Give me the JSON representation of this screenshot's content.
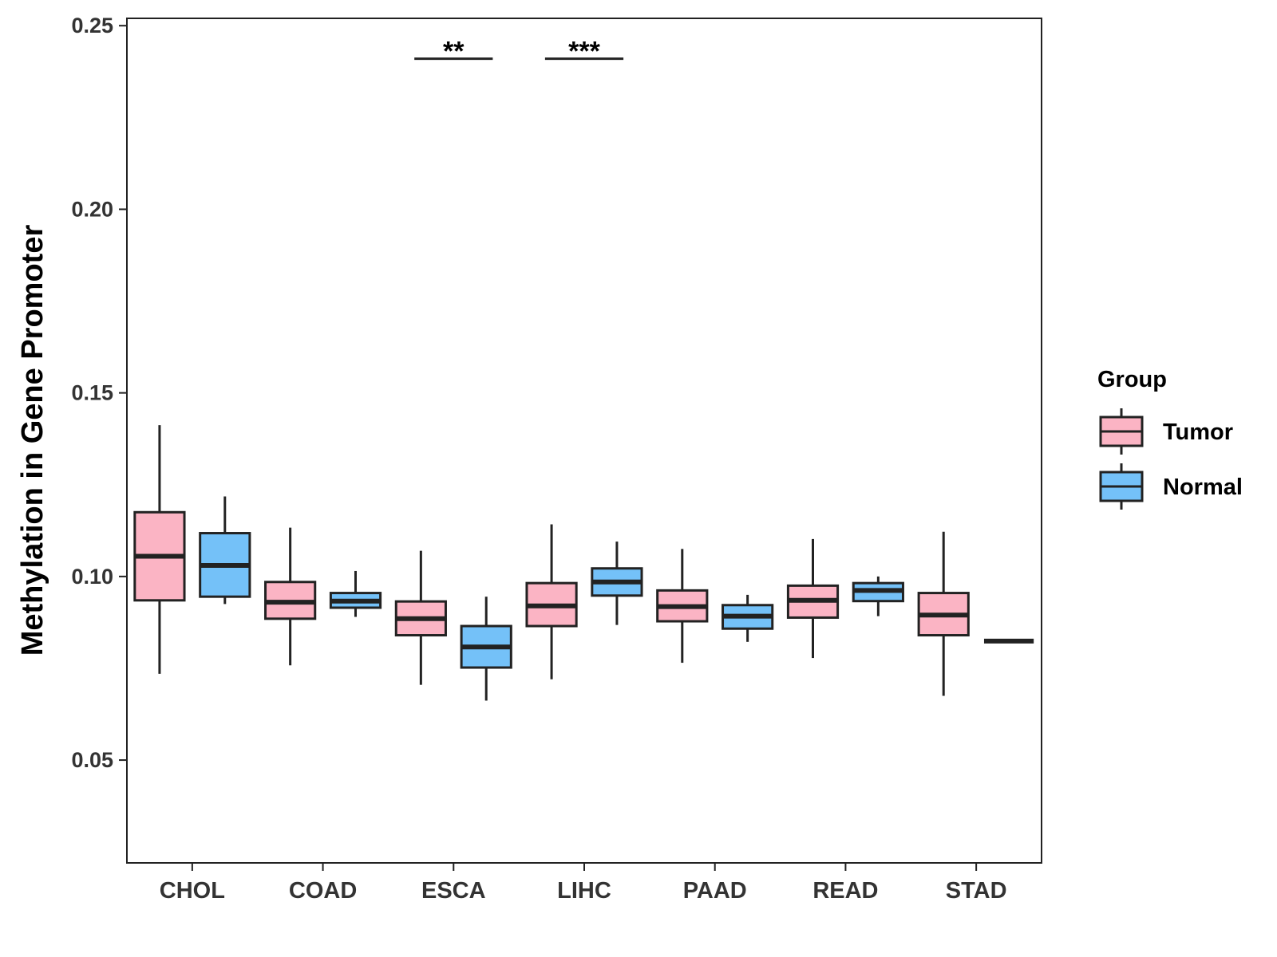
{
  "chart_data": {
    "type": "boxplot",
    "title": "",
    "xlabel": "",
    "ylabel": "Methylation in Gene Promoter",
    "ylim": [
      0.022,
      0.252
    ],
    "yticks": [
      0.05,
      0.1,
      0.15,
      0.2,
      0.25
    ],
    "ytick_labels": [
      "0.05",
      "0.10",
      "0.15",
      "0.20",
      "0.25"
    ],
    "categories": [
      "CHOL",
      "COAD",
      "ESCA",
      "LIHC",
      "PAAD",
      "READ",
      "STAD"
    ],
    "legend": {
      "title": "Group",
      "position": "right",
      "entries": [
        "Tumor",
        "Normal"
      ]
    },
    "series": [
      {
        "name": "Tumor",
        "color": "#FBB4C4",
        "boxes": [
          {
            "min": 0.0735,
            "q1": 0.0935,
            "median": 0.1055,
            "q3": 0.1175,
            "max": 0.1412
          },
          {
            "min": 0.0758,
            "q1": 0.0885,
            "median": 0.093,
            "q3": 0.0985,
            "max": 0.1133
          },
          {
            "min": 0.0705,
            "q1": 0.084,
            "median": 0.0885,
            "q3": 0.0932,
            "max": 0.107
          },
          {
            "min": 0.072,
            "q1": 0.0865,
            "median": 0.092,
            "q3": 0.0982,
            "max": 0.1142
          },
          {
            "min": 0.0765,
            "q1": 0.0878,
            "median": 0.0918,
            "q3": 0.0962,
            "max": 0.1075
          },
          {
            "min": 0.0778,
            "q1": 0.0888,
            "median": 0.0935,
            "q3": 0.0975,
            "max": 0.1102
          },
          {
            "min": 0.0675,
            "q1": 0.084,
            "median": 0.0895,
            "q3": 0.0955,
            "max": 0.1122
          }
        ]
      },
      {
        "name": "Normal",
        "color": "#74C1F8",
        "boxes": [
          {
            "min": 0.0925,
            "q1": 0.0945,
            "median": 0.103,
            "q3": 0.1118,
            "max": 0.1218
          },
          {
            "min": 0.089,
            "q1": 0.0915,
            "median": 0.0933,
            "q3": 0.0955,
            "max": 0.1015
          },
          {
            "min": 0.0662,
            "q1": 0.0752,
            "median": 0.0808,
            "q3": 0.0865,
            "max": 0.0945
          },
          {
            "min": 0.0868,
            "q1": 0.0948,
            "median": 0.0985,
            "q3": 0.1022,
            "max": 0.1095
          },
          {
            "min": 0.0822,
            "q1": 0.0858,
            "median": 0.0892,
            "q3": 0.0922,
            "max": 0.095
          },
          {
            "min": 0.0892,
            "q1": 0.0933,
            "median": 0.0962,
            "q3": 0.0982,
            "max": 0.1
          },
          {
            "min": 0.0824,
            "q1": 0.0824,
            "median": 0.0824,
            "q3": 0.0824,
            "max": 0.0824
          }
        ]
      }
    ],
    "significance": [
      {
        "category": "ESCA",
        "label": "**",
        "y": 0.241
      },
      {
        "category": "LIHC",
        "label": "***",
        "y": 0.241
      }
    ]
  }
}
